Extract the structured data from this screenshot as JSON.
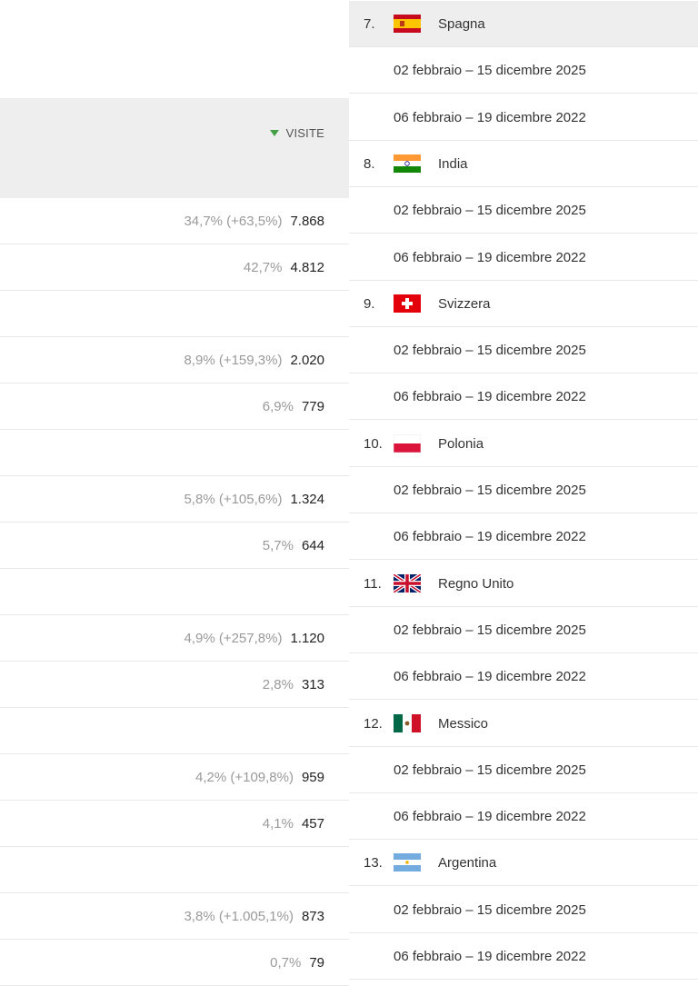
{
  "visits_table": {
    "sort_column_label": "VISITE",
    "rows": [
      {
        "pct": "34,7% (+63,5%)",
        "value": "7.868"
      },
      {
        "pct": "42,7%",
        "value": "4.812"
      },
      {
        "pct": "",
        "value": ""
      },
      {
        "pct": "8,9% (+159,3%)",
        "value": "2.020"
      },
      {
        "pct": "6,9%",
        "value": "779"
      },
      {
        "pct": "",
        "value": ""
      },
      {
        "pct": "5,8% (+105,6%)",
        "value": "1.324"
      },
      {
        "pct": "5,7%",
        "value": "644"
      },
      {
        "pct": "",
        "value": ""
      },
      {
        "pct": "4,9% (+257,8%)",
        "value": "1.120"
      },
      {
        "pct": "2,8%",
        "value": "313"
      },
      {
        "pct": "",
        "value": ""
      },
      {
        "pct": "4,2% (+109,8%)",
        "value": "959"
      },
      {
        "pct": "4,1%",
        "value": "457"
      },
      {
        "pct": "",
        "value": ""
      },
      {
        "pct": "3,8% (+1.005,1%)",
        "value": "873"
      },
      {
        "pct": "0,7%",
        "value": "79"
      }
    ]
  },
  "countries_table": {
    "rows": [
      {
        "type": "country",
        "rank": "7.",
        "name": "Spagna",
        "flag": "flag-spain"
      },
      {
        "type": "period",
        "text": "02 febbraio – 15 dicembre 2025"
      },
      {
        "type": "period",
        "text": "06 febbraio – 19 dicembre 2022"
      },
      {
        "type": "country",
        "rank": "8.",
        "name": "India",
        "flag": "flag-india"
      },
      {
        "type": "period",
        "text": "02 febbraio – 15 dicembre 2025"
      },
      {
        "type": "period",
        "text": "06 febbraio – 19 dicembre 2022"
      },
      {
        "type": "country",
        "rank": "9.",
        "name": "Svizzera",
        "flag": "flag-switzerland"
      },
      {
        "type": "period",
        "text": "02 febbraio – 15 dicembre 2025"
      },
      {
        "type": "period",
        "text": "06 febbraio – 19 dicembre 2022"
      },
      {
        "type": "country",
        "rank": "10.",
        "name": "Polonia",
        "flag": "flag-poland"
      },
      {
        "type": "period",
        "text": "02 febbraio – 15 dicembre 2025"
      },
      {
        "type": "period",
        "text": "06 febbraio – 19 dicembre 2022"
      },
      {
        "type": "country",
        "rank": "11.",
        "name": "Regno Unito",
        "flag": "flag-united-kingdom"
      },
      {
        "type": "period",
        "text": "02 febbraio – 15 dicembre 2025"
      },
      {
        "type": "period",
        "text": "06 febbraio – 19 dicembre 2022"
      },
      {
        "type": "country",
        "rank": "12.",
        "name": "Messico",
        "flag": "flag-mexico"
      },
      {
        "type": "period",
        "text": "02 febbraio – 15 dicembre 2025"
      },
      {
        "type": "period",
        "text": "06 febbraio – 19 dicembre 2022"
      },
      {
        "type": "country",
        "rank": "13.",
        "name": "Argentina",
        "flag": "flag-argentina"
      },
      {
        "type": "period",
        "text": "02 febbraio – 15 dicembre 2025"
      },
      {
        "type": "period",
        "text": "06 febbraio – 19 dicembre 2022"
      }
    ]
  },
  "colors": {
    "header_bg": "#eeeeee",
    "sort_arrow": "#43a047",
    "pct_text": "#9a9a9a",
    "row_border": "#e8e8e8"
  }
}
